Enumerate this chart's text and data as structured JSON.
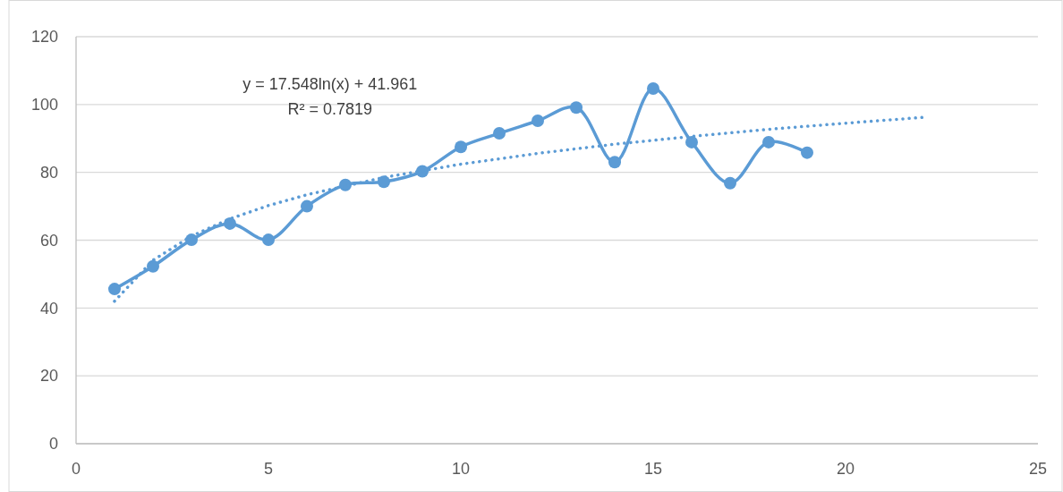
{
  "chart_data": {
    "type": "line",
    "x": [
      1,
      2,
      3,
      4,
      5,
      6,
      7,
      8,
      9,
      10,
      11,
      12,
      13,
      14,
      15,
      16,
      17,
      18,
      19
    ],
    "series": [
      {
        "color": "#5b9bd5",
        "marker": "circle",
        "line_style": "solid",
        "values": [
          45.6,
          52.3,
          60.1,
          64.9,
          60.1,
          70.0,
          76.3,
          77.2,
          80.3,
          87.5,
          91.5,
          95.2,
          99.1,
          83.0,
          104.7,
          88.9,
          76.8,
          88.9,
          85.8
        ]
      },
      {
        "type": "line",
        "color": "#5b9bd5",
        "marker": "none",
        "line_style": "dotted",
        "x": [
          1,
          2,
          3,
          4,
          5,
          6,
          8,
          10,
          12,
          14,
          16,
          18,
          20,
          22
        ],
        "values": [
          42.0,
          54.1,
          61.2,
          66.3,
          70.2,
          73.4,
          78.5,
          82.4,
          85.6,
          88.3,
          90.6,
          92.7,
          94.5,
          96.2
        ]
      }
    ],
    "xlim": [
      0,
      25
    ],
    "xticks": [
      0,
      5,
      10,
      15,
      20,
      25
    ],
    "ylim": [
      0,
      120
    ],
    "yticks": [
      0,
      20,
      40,
      60,
      80,
      100,
      120
    ],
    "grid": "y",
    "annotations": [
      "y = 17.548ln(x) + 41.961",
      "R² = 0.7819"
    ]
  }
}
